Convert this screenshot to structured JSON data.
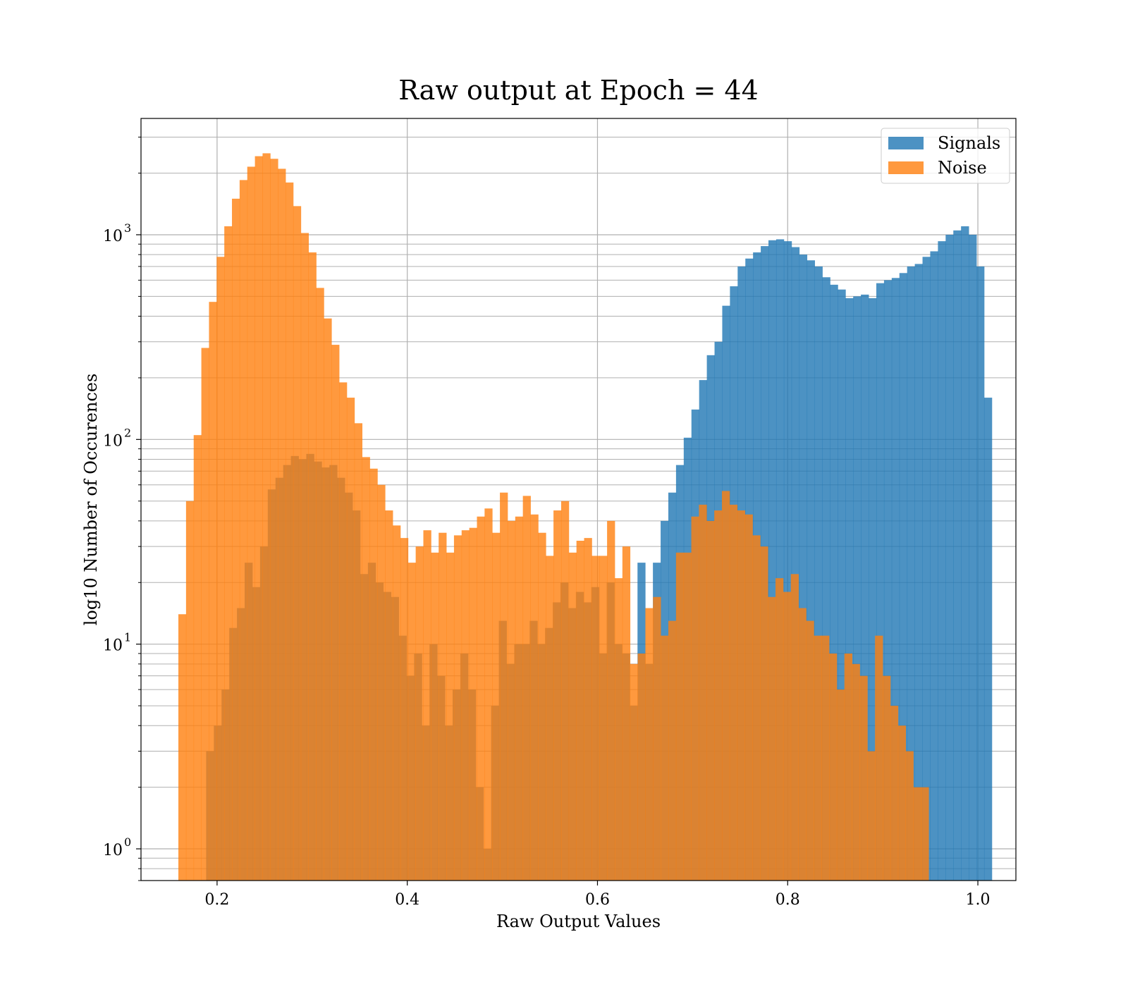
{
  "chart_data": {
    "type": "bar",
    "title": "Raw output at Epoch = 44",
    "xlabel": "Raw Output Values",
    "ylabel": "log10 Number of Occurences",
    "xlim": [
      0.12,
      1.04
    ],
    "ylim": [
      0.7,
      3700
    ],
    "yscale": "log",
    "grid": true,
    "legend_position": "top-right",
    "x_ticks": [
      "0.2",
      "0.4",
      "0.6",
      "0.8",
      "1.0"
    ],
    "x_tick_values": [
      0.2,
      0.4,
      0.6,
      0.8,
      1.0
    ],
    "y_ticks": [
      {
        "base": "10",
        "exp": "0",
        "value": 1
      },
      {
        "base": "10",
        "exp": "1",
        "value": 10
      },
      {
        "base": "10",
        "exp": "2",
        "value": 100
      },
      {
        "base": "10",
        "exp": "3",
        "value": 1000
      }
    ],
    "series": [
      {
        "name": "Signals",
        "color": "#1f77b4",
        "alpha": 0.8,
        "bin_start": 0.1885,
        "bin_width": 0.0081,
        "values": [
          3,
          4,
          6,
          12,
          15,
          25,
          19,
          30,
          57,
          65,
          75,
          83,
          80,
          85,
          78,
          73,
          75,
          65,
          55,
          45,
          22,
          25,
          20,
          18,
          17,
          11,
          7,
          9,
          4,
          10,
          7,
          4,
          6,
          9,
          6,
          2,
          1,
          5,
          13,
          8,
          10,
          10,
          13,
          10,
          12,
          16,
          20,
          15,
          18,
          16,
          19,
          9,
          20,
          10,
          9,
          5,
          25,
          8,
          25,
          40,
          55,
          75,
          102,
          140,
          195,
          258,
          300,
          450,
          560,
          700,
          765,
          820,
          880,
          940,
          950,
          930,
          870,
          800,
          750,
          700,
          620,
          570,
          540,
          490,
          500,
          510,
          490,
          580,
          600,
          615,
          650,
          700,
          720,
          780,
          830,
          930,
          1000,
          1050,
          1100,
          1000,
          700,
          160
        ]
      },
      {
        "name": "Noise",
        "color": "#ff7f0e",
        "alpha": 0.8,
        "bin_start": 0.1593,
        "bin_width": 0.00805,
        "values": [
          14,
          50,
          105,
          280,
          470,
          780,
          1100,
          1500,
          1850,
          2150,
          2420,
          2500,
          2350,
          2100,
          1800,
          1380,
          1020,
          820,
          550,
          390,
          290,
          190,
          160,
          120,
          82,
          72,
          60,
          45,
          38,
          33,
          25,
          30,
          36,
          28,
          35,
          28,
          34,
          36,
          37,
          42,
          46,
          35,
          55,
          40,
          42,
          53,
          43,
          35,
          27,
          45,
          50,
          28,
          32,
          33,
          27,
          27,
          40,
          21,
          30,
          8,
          9,
          15,
          17,
          11,
          13,
          28,
          28,
          42,
          48,
          40,
          45,
          56,
          48,
          45,
          43,
          34,
          30,
          17,
          21,
          18,
          22,
          15,
          13,
          11,
          11,
          9,
          6,
          9,
          8,
          7,
          3,
          11,
          7,
          5,
          4,
          3,
          2,
          2
        ]
      }
    ]
  }
}
